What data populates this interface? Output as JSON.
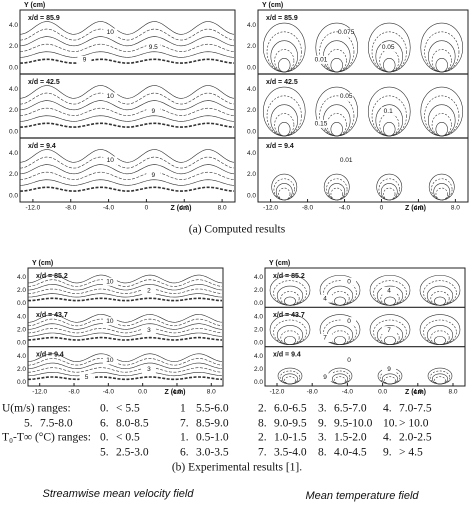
{
  "computed": {
    "caption": "(a) Computed results",
    "velocity": {
      "y_label": "Y (cm)",
      "x_label": "Z (cm)",
      "xticks": [
        "-12.0",
        "-8.0",
        "-4.0",
        "0",
        "4.0",
        "8.0"
      ],
      "strips": [
        {
          "label": "x/d = 85.9",
          "yticks": [
            "0.0",
            "2.0",
            "4.0"
          ],
          "contour_labels": [
            "10",
            "9.5",
            "9"
          ]
        },
        {
          "label": "x/d = 42.5",
          "yticks": [
            "0.0",
            "2.0",
            "4.0"
          ],
          "contour_labels": [
            "10",
            "9"
          ]
        },
        {
          "label": "x/d = 9.4",
          "yticks": [
            "0.0",
            "2.0",
            "4.0"
          ],
          "contour_labels": [
            "10",
            "9"
          ]
        }
      ]
    },
    "temperature": {
      "y_label": "Y (cm)",
      "x_label": "Z (cm)",
      "xticks": [
        "-12.0",
        "-8.0",
        "-4.0",
        "0",
        "4.0",
        "8.0"
      ],
      "strips": [
        {
          "label": "x/d = 85.9",
          "yticks": [
            "0.0",
            "2.0",
            "4.0"
          ],
          "contour_labels": [
            "0.075",
            "0.05",
            "0.01"
          ]
        },
        {
          "label": "x/d = 42.5",
          "yticks": [
            "0.0",
            "2.0",
            "4.0"
          ],
          "contour_labels": [
            "0.05",
            "0.1",
            "0.15"
          ]
        },
        {
          "label": "x/d = 9.4",
          "yticks": [
            "0.0",
            "2.0",
            "4.0"
          ],
          "contour_labels": [
            "0.01"
          ]
        }
      ]
    }
  },
  "experimental": {
    "caption": "(b) Experimental results [1].",
    "velocity": {
      "y_label": "Y (cm)",
      "x_label": "Z (cm)",
      "xticks": [
        "-12.0",
        "-8.0",
        "-4.0",
        "0.0",
        "4.0",
        "8.0"
      ],
      "strips": [
        {
          "label": "x/d = 85.2",
          "yticks": [
            "0.0",
            "2.0",
            "4.0"
          ],
          "contour_labels": [
            "10",
            "2"
          ]
        },
        {
          "label": "x/d = 43.7",
          "yticks": [
            "0.0",
            "2.0",
            "4.0"
          ],
          "contour_labels": [
            "10",
            "3"
          ]
        },
        {
          "label": "x/d = 9.4",
          "yticks": [
            "0.0",
            "2.0",
            "4.0"
          ],
          "contour_labels": [
            "10",
            "3",
            "5"
          ]
        }
      ]
    },
    "temperature": {
      "y_label": "Y (cm)",
      "x_label": "Z (cm)",
      "xticks": [
        "-12.0",
        "-8.0",
        "-4.0",
        "0.0",
        "4.0",
        "8.0"
      ],
      "strips": [
        {
          "label": "x/d = 85.2",
          "yticks": [
            "0.0",
            "2.0",
            "4.0"
          ],
          "contour_labels": [
            "0",
            "4",
            "4"
          ]
        },
        {
          "label": "x/d = 43.7",
          "yticks": [
            "0.0",
            "2.0",
            "4.0"
          ],
          "contour_labels": [
            "0",
            "7",
            "7"
          ]
        },
        {
          "label": "x/d = 9.4",
          "yticks": [
            "0.0",
            "2.0",
            "4.0"
          ],
          "contour_labels": [
            "0",
            "9",
            "9"
          ]
        }
      ]
    }
  },
  "ranges": {
    "velocity": {
      "label": "U(m/s) ranges:",
      "items": [
        [
          "0.",
          "< 5.5"
        ],
        [
          "1",
          "5.5-6.0"
        ],
        [
          "2.",
          "6.0-6.5"
        ],
        [
          "3.",
          "6.5-7.0"
        ],
        [
          "4.",
          "7.0-7.5"
        ],
        [
          "5.",
          "7.5-8.0"
        ],
        [
          "6.",
          "8.0-8.5"
        ],
        [
          "7.",
          "8.5-9.0"
        ],
        [
          "8.",
          "9.0-9.5"
        ],
        [
          "9.",
          "9.5-10.0"
        ],
        [
          "10.",
          "> 10.0"
        ]
      ]
    },
    "temperature": {
      "label": "T₀-T∞ (°C)  ranges:",
      "items": [
        [
          "0.",
          "< 0.5"
        ],
        [
          "1.",
          "0.5-1.0"
        ],
        [
          "2.",
          "1.0-1.5"
        ],
        [
          "3.",
          "1.5-2.0"
        ],
        [
          "4.",
          "2.0-2.5"
        ],
        [
          "5.",
          "2.5-3.0"
        ],
        [
          "6.",
          "3.0-3.5"
        ],
        [
          "7.",
          "3.5-4.0"
        ],
        [
          "8.",
          "4.0-4.5"
        ],
        [
          "9.",
          "> 4.5"
        ]
      ]
    }
  },
  "footer": {
    "left": "Streamwise mean velocity field",
    "right": "Mean temperature field"
  }
}
